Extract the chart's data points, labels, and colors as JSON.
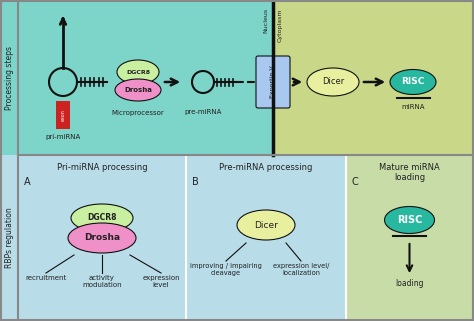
{
  "fig_width": 4.74,
  "fig_height": 3.21,
  "dpi": 100,
  "bg_top_left": "#7dd4c8",
  "bg_top_right": "#c8d888",
  "bg_bottom_left": "#b8dce8",
  "bg_bottom_right": "#c8dca8",
  "exportin_color": "#a8c8f0",
  "dicer_color_top": "#e8f0a0",
  "risc_color": "#28b8a0",
  "dgcr8_color": "#c8f0a0",
  "drosha_color": "#f090c8",
  "exon_color": "#cc2222",
  "line_color": "#111111",
  "text_color": "#222222",
  "white": "#ffffff",
  "section_label_left": "Processing steps",
  "section_label_bottom": "RBPs regulation",
  "nucleus_label": "Nucleus",
  "cytoplasm_label": "Cytoplasm",
  "pri_mirna_label": "pri-miRNA",
  "pre_mirna_label": "pre-miRNA",
  "mirna_label": "miRNA",
  "microprocessor_label": "Microprocessor",
  "exportin_label": "Exportin V",
  "dicer_label": "Dicer",
  "risc_label": "RISC",
  "dgcr8_label": "DGCR8",
  "drosha_label": "Drosha",
  "exon_label": "exon",
  "pri_processing_title": "Pri-miRNA processing",
  "pre_processing_title": "Pre-miRNA processing",
  "mature_loading_title": "Mature miRNA\nloading",
  "panel_a": "A",
  "panel_b": "B",
  "panel_c": "C",
  "recruitment_label": "recruitment",
  "activity_label": "activity\nmodulation",
  "expression_label": "expression\nlevel",
  "improving_label": "improving / impairing\ncleavage",
  "expression_loc_label": "expression level/\nlocalization",
  "loading_label": "loading"
}
